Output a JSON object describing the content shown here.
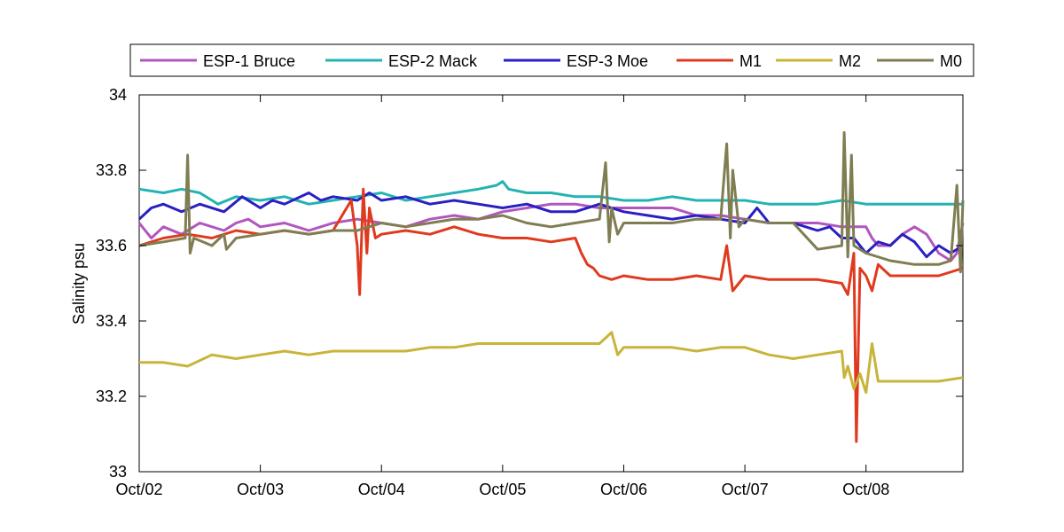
{
  "chart_data": {
    "type": "line",
    "title": "",
    "xlabel": "",
    "ylabel": "Salinity psu",
    "xlim": [
      0,
      6.8
    ],
    "ylim": [
      33,
      34
    ],
    "x_ticks": [
      {
        "x": 0,
        "label": "Oct/02"
      },
      {
        "x": 1,
        "label": "Oct/03"
      },
      {
        "x": 2,
        "label": "Oct/04"
      },
      {
        "x": 3,
        "label": "Oct/05"
      },
      {
        "x": 4,
        "label": "Oct/06"
      },
      {
        "x": 5,
        "label": "Oct/07"
      },
      {
        "x": 6,
        "label": "Oct/08"
      }
    ],
    "y_ticks": [
      33,
      33.2,
      33.4,
      33.6,
      33.8,
      34
    ],
    "grid": false,
    "legend_position": "top",
    "series": [
      {
        "name": "ESP-1 Bruce",
        "color": "#b256bf",
        "x": [
          0.0,
          0.05,
          0.1,
          0.2,
          0.35,
          0.5,
          0.7,
          0.8,
          0.9,
          1.0,
          1.2,
          1.4,
          1.6,
          1.8,
          2.0,
          2.2,
          2.4,
          2.6,
          2.8,
          3.0,
          3.2,
          3.4,
          3.6,
          3.8,
          4.0,
          4.2,
          4.4,
          4.6,
          4.8,
          5.0,
          5.2,
          5.4,
          5.6,
          5.8,
          5.9,
          6.0,
          6.05,
          6.1,
          6.2,
          6.3,
          6.4,
          6.5,
          6.6,
          6.7,
          6.75,
          6.8
        ],
        "y": [
          33.66,
          33.64,
          33.62,
          33.65,
          33.63,
          33.66,
          33.64,
          33.66,
          33.67,
          33.65,
          33.66,
          33.64,
          33.66,
          33.67,
          33.66,
          33.65,
          33.67,
          33.68,
          33.67,
          33.69,
          33.7,
          33.71,
          33.71,
          33.7,
          33.7,
          33.7,
          33.7,
          33.68,
          33.68,
          33.67,
          33.66,
          33.66,
          33.66,
          33.65,
          33.65,
          33.65,
          33.62,
          33.6,
          33.6,
          33.63,
          33.65,
          33.63,
          33.58,
          33.56,
          33.58,
          33.66
        ]
      },
      {
        "name": "ESP-2 Mack",
        "color": "#24b3b3",
        "x": [
          0.0,
          0.2,
          0.35,
          0.5,
          0.65,
          0.8,
          1.0,
          1.2,
          1.4,
          1.6,
          1.8,
          2.0,
          2.2,
          2.4,
          2.6,
          2.8,
          2.95,
          3.0,
          3.05,
          3.2,
          3.4,
          3.6,
          3.8,
          4.0,
          4.2,
          4.4,
          4.6,
          4.8,
          5.0,
          5.2,
          5.4,
          5.6,
          5.8,
          6.0,
          6.2,
          6.4,
          6.6,
          6.8
        ],
        "y": [
          33.75,
          33.74,
          33.75,
          33.74,
          33.71,
          33.73,
          33.72,
          33.73,
          33.71,
          33.72,
          33.73,
          33.74,
          33.72,
          33.73,
          33.74,
          33.75,
          33.76,
          33.77,
          33.75,
          33.74,
          33.74,
          33.73,
          33.73,
          33.72,
          33.72,
          33.73,
          33.72,
          33.72,
          33.72,
          33.71,
          33.71,
          33.71,
          33.72,
          33.71,
          33.71,
          33.71,
          33.71,
          33.71
        ]
      },
      {
        "name": "ESP-3 Moe",
        "color": "#2a1fc2",
        "x": [
          0.0,
          0.1,
          0.2,
          0.35,
          0.5,
          0.7,
          0.85,
          1.0,
          1.1,
          1.2,
          1.4,
          1.5,
          1.6,
          1.8,
          1.9,
          2.0,
          2.2,
          2.4,
          2.6,
          2.8,
          3.0,
          3.2,
          3.4,
          3.6,
          3.8,
          4.0,
          4.2,
          4.4,
          4.6,
          4.8,
          5.0,
          5.1,
          5.2,
          5.4,
          5.6,
          5.7,
          5.8,
          5.9,
          6.0,
          6.1,
          6.2,
          6.3,
          6.4,
          6.5,
          6.6,
          6.7,
          6.8
        ],
        "y": [
          33.67,
          33.7,
          33.71,
          33.69,
          33.71,
          33.69,
          33.73,
          33.7,
          33.72,
          33.71,
          33.74,
          33.72,
          33.73,
          33.72,
          33.74,
          33.72,
          33.73,
          33.71,
          33.72,
          33.71,
          33.7,
          33.71,
          33.69,
          33.69,
          33.71,
          33.69,
          33.68,
          33.67,
          33.68,
          33.67,
          33.66,
          33.7,
          33.66,
          33.66,
          33.64,
          33.65,
          33.62,
          33.62,
          33.58,
          33.61,
          33.6,
          33.63,
          33.61,
          33.57,
          33.6,
          33.58,
          33.6
        ]
      },
      {
        "name": "M1",
        "color": "#e03a1e",
        "x": [
          0.0,
          0.2,
          0.4,
          0.6,
          0.8,
          1.0,
          1.2,
          1.4,
          1.6,
          1.75,
          1.8,
          1.82,
          1.85,
          1.88,
          1.9,
          1.95,
          2.0,
          2.2,
          2.4,
          2.6,
          2.8,
          3.0,
          3.2,
          3.4,
          3.6,
          3.65,
          3.7,
          3.75,
          3.8,
          3.9,
          4.0,
          4.2,
          4.4,
          4.6,
          4.8,
          4.85,
          4.9,
          5.0,
          5.2,
          5.4,
          5.6,
          5.8,
          5.85,
          5.9,
          5.92,
          5.95,
          6.0,
          6.05,
          6.1,
          6.2,
          6.4,
          6.6,
          6.8
        ],
        "y": [
          33.6,
          33.62,
          33.63,
          33.62,
          33.64,
          33.63,
          33.64,
          33.63,
          33.64,
          33.72,
          33.6,
          33.47,
          33.75,
          33.58,
          33.7,
          33.62,
          33.63,
          33.64,
          33.63,
          33.65,
          33.63,
          33.62,
          33.62,
          33.61,
          33.62,
          33.58,
          33.55,
          33.54,
          33.52,
          33.51,
          33.52,
          33.51,
          33.51,
          33.52,
          33.51,
          33.6,
          33.48,
          33.52,
          33.51,
          33.51,
          33.51,
          33.5,
          33.47,
          33.58,
          33.08,
          33.54,
          33.52,
          33.48,
          33.55,
          33.52,
          33.52,
          33.52,
          33.54
        ]
      },
      {
        "name": "M2",
        "color": "#c9b43a",
        "x": [
          0.0,
          0.2,
          0.4,
          0.6,
          0.8,
          1.0,
          1.2,
          1.4,
          1.6,
          1.8,
          2.0,
          2.2,
          2.4,
          2.6,
          2.8,
          3.0,
          3.2,
          3.4,
          3.6,
          3.8,
          3.9,
          3.95,
          4.0,
          4.2,
          4.4,
          4.6,
          4.8,
          5.0,
          5.2,
          5.4,
          5.6,
          5.8,
          5.82,
          5.85,
          5.9,
          5.95,
          6.0,
          6.05,
          6.1,
          6.2,
          6.4,
          6.6,
          6.8
        ],
        "y": [
          33.29,
          33.29,
          33.28,
          33.31,
          33.3,
          33.31,
          33.32,
          33.31,
          33.32,
          33.32,
          33.32,
          33.32,
          33.33,
          33.33,
          33.34,
          33.34,
          33.34,
          33.34,
          33.34,
          33.34,
          33.37,
          33.31,
          33.33,
          33.33,
          33.33,
          33.32,
          33.33,
          33.33,
          33.31,
          33.3,
          33.31,
          33.32,
          33.25,
          33.28,
          33.22,
          33.26,
          33.21,
          33.34,
          33.24,
          33.24,
          33.24,
          33.24,
          33.25
        ]
      },
      {
        "name": "M0",
        "color": "#7f7d52",
        "x": [
          0.0,
          0.2,
          0.38,
          0.4,
          0.42,
          0.45,
          0.6,
          0.7,
          0.72,
          0.8,
          1.0,
          1.2,
          1.4,
          1.6,
          1.8,
          2.0,
          2.2,
          2.4,
          2.6,
          2.8,
          3.0,
          3.2,
          3.4,
          3.6,
          3.8,
          3.85,
          3.88,
          3.9,
          3.95,
          4.0,
          4.2,
          4.4,
          4.6,
          4.8,
          4.85,
          4.88,
          4.9,
          4.95,
          5.0,
          5.2,
          5.4,
          5.6,
          5.8,
          5.82,
          5.85,
          5.88,
          5.9,
          6.0,
          6.2,
          6.4,
          6.6,
          6.7,
          6.75,
          6.78,
          6.8
        ],
        "y": [
          33.6,
          33.61,
          33.62,
          33.84,
          33.58,
          33.62,
          33.6,
          33.63,
          33.59,
          33.62,
          33.63,
          33.64,
          33.63,
          33.64,
          33.64,
          33.66,
          33.65,
          33.66,
          33.67,
          33.67,
          33.68,
          33.66,
          33.65,
          33.66,
          33.67,
          33.82,
          33.61,
          33.7,
          33.63,
          33.66,
          33.66,
          33.66,
          33.67,
          33.67,
          33.87,
          33.62,
          33.8,
          33.65,
          33.67,
          33.66,
          33.66,
          33.59,
          33.6,
          33.9,
          33.57,
          33.84,
          33.6,
          33.58,
          33.56,
          33.55,
          33.55,
          33.56,
          33.76,
          33.53,
          33.72
        ]
      }
    ]
  }
}
